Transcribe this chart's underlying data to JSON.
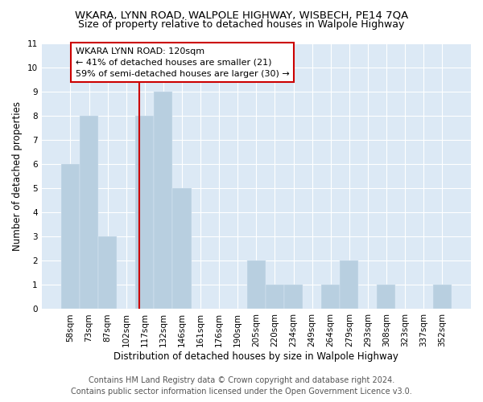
{
  "title": "WKARA, LYNN ROAD, WALPOLE HIGHWAY, WISBECH, PE14 7QA",
  "subtitle": "Size of property relative to detached houses in Walpole Highway",
  "xlabel": "Distribution of detached houses by size in Walpole Highway",
  "ylabel": "Number of detached properties",
  "bar_labels": [
    "58sqm",
    "73sqm",
    "87sqm",
    "102sqm",
    "117sqm",
    "132sqm",
    "146sqm",
    "161sqm",
    "176sqm",
    "190sqm",
    "205sqm",
    "220sqm",
    "234sqm",
    "249sqm",
    "264sqm",
    "279sqm",
    "293sqm",
    "308sqm",
    "323sqm",
    "337sqm",
    "352sqm"
  ],
  "bar_values": [
    6,
    8,
    3,
    0,
    8,
    9,
    5,
    0,
    0,
    0,
    2,
    1,
    1,
    0,
    1,
    2,
    0,
    1,
    0,
    0,
    1
  ],
  "bar_color": "#b8cfe0",
  "plot_bg_color": "#dce9f5",
  "grid_color": "#ffffff",
  "property_label": "WKARA LYNN ROAD: 120sqm",
  "pct_smaller": 41,
  "num_smaller": 21,
  "pct_larger_semi": 59,
  "num_larger_semi": 30,
  "ylim": [
    0,
    11
  ],
  "yticks": [
    0,
    1,
    2,
    3,
    4,
    5,
    6,
    7,
    8,
    9,
    10,
    11
  ],
  "footer1": "Contains HM Land Registry data © Crown copyright and database right 2024.",
  "footer2": "Contains public sector information licensed under the Open Government Licence v3.0.",
  "vline_color": "#cc0000",
  "annotation_edge_color": "#cc0000",
  "title_fontsize": 9.5,
  "subtitle_fontsize": 9,
  "axis_label_fontsize": 8.5,
  "tick_fontsize": 7.5,
  "annotation_fontsize": 8,
  "footer_fontsize": 7,
  "footer_color": "#555555"
}
